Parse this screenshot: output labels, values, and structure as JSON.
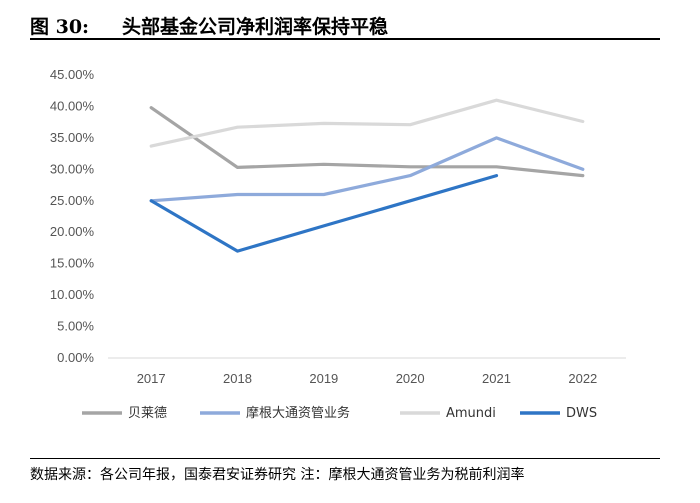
{
  "figure": {
    "number": "图 30:",
    "title": "头部基金公司净利润率保持平稳"
  },
  "chart_data": {
    "type": "line",
    "categories": [
      "2017",
      "2018",
      "2019",
      "2020",
      "2021",
      "2022"
    ],
    "ylim": [
      0,
      45
    ],
    "ytick_labels": [
      "0.00%",
      "5.00%",
      "10.00%",
      "15.00%",
      "20.00%",
      "25.00%",
      "30.00%",
      "35.00%",
      "40.00%",
      "45.00%"
    ],
    "grid": false,
    "legend_position": "bottom",
    "series": [
      {
        "name": "贝莱德",
        "color": "#a5a5a5",
        "values": [
          39.8,
          30.3,
          30.8,
          30.4,
          30.4,
          29.0
        ]
      },
      {
        "name": "摩根大通资管业务",
        "color": "#8eaadb",
        "values": [
          25.0,
          26.0,
          26.0,
          29.0,
          35.0,
          30.0
        ]
      },
      {
        "name": "Amundi",
        "color": "#d9d9d9",
        "values": [
          33.7,
          36.7,
          37.3,
          37.1,
          41.0,
          37.6
        ]
      },
      {
        "name": "DWS",
        "color": "#2e75c5",
        "values": [
          25.0,
          17.0,
          21.0,
          25.0,
          29.0,
          null
        ]
      }
    ]
  },
  "footer": {
    "source": "数据来源：各公司年报，国泰君安证券研究 注：摩根大通资管业务为税前利润率"
  }
}
